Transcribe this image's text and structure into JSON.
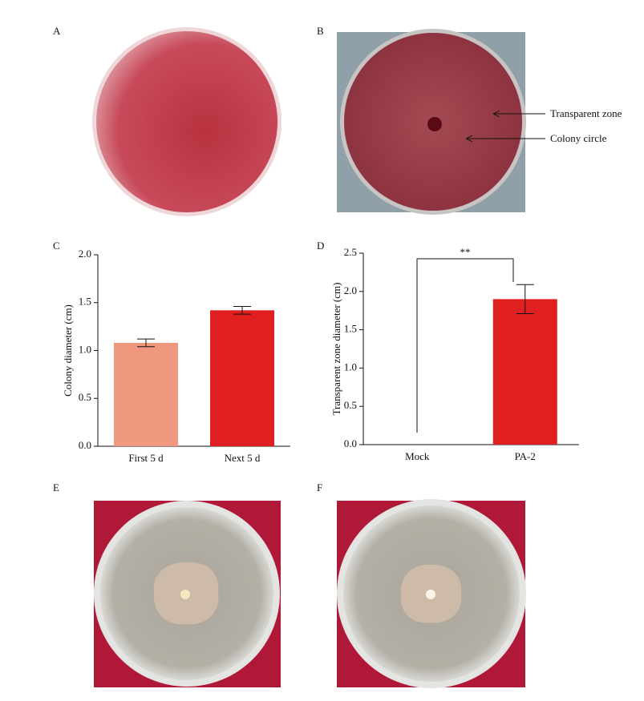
{
  "panel_labels": [
    "A",
    "B",
    "C",
    "D",
    "E",
    "F"
  ],
  "annotations": [
    "Transparent zone",
    "Colony circle"
  ],
  "chart_data": [
    {
      "type": "bar",
      "ylabel": "Colony diameter (cm)",
      "categories": [
        "First 5 d",
        "Next 5 d"
      ],
      "values": [
        1.08,
        1.42
      ],
      "errors": [
        0.04,
        0.04
      ],
      "colors": [
        "#f0987e",
        "#e02020"
      ],
      "ylim": [
        0,
        2
      ],
      "yticks": [
        {
          "value": 0,
          "label": "0.0"
        },
        0.5,
        {
          "value": 1,
          "label": "1.0"
        },
        1.5,
        {
          "value": 2,
          "label": "2.0"
        }
      ]
    },
    {
      "type": "bar",
      "ylabel": "Transparent zone diameter (cm)",
      "categories": [
        "Mock",
        "PA-2"
      ],
      "values": [
        0,
        1.9
      ],
      "errors": [
        null,
        0.19
      ],
      "colors": [
        "#e02020",
        "#e02020"
      ],
      "ylim": [
        0,
        2.5
      ],
      "yticks": [
        {
          "value": 0,
          "label": "0.0"
        },
        0.5,
        {
          "value": 1,
          "label": "1.0"
        },
        1.5,
        {
          "value": 2,
          "label": "2.0"
        },
        2.5
      ],
      "annotation": "**"
    }
  ]
}
